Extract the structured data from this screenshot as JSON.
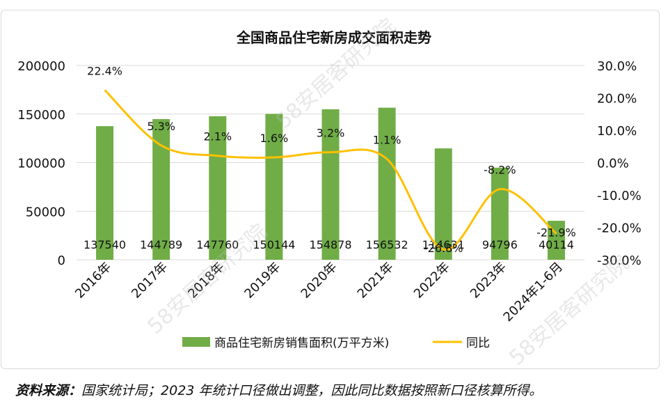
{
  "chart_data": {
    "type": "bar",
    "title": "全国商品住宅新房成交面积走势",
    "categories": [
      "2016年",
      "2017年",
      "2018年",
      "2019年",
      "2020年",
      "2021年",
      "2022年",
      "2023年",
      "2024年1-6月"
    ],
    "series": [
      {
        "name": "商品住宅新房销售面积(万平方米)",
        "type": "bar",
        "axis": "left",
        "color": "#70ad47",
        "values": [
          137540,
          144789,
          147760,
          150144,
          154878,
          156532,
          114631,
          94796,
          40114
        ]
      },
      {
        "name": "同比",
        "type": "line",
        "axis": "right",
        "color": "#ffc000",
        "values": [
          22.4,
          5.3,
          2.1,
          1.6,
          3.2,
          1.1,
          -26.8,
          -8.2,
          -21.9
        ],
        "labels": [
          "22.4%",
          "5.3%",
          "2.1%",
          "1.6%",
          "3.2%",
          "1.1%",
          "-26.8%",
          "-8.2%",
          "-21.9%"
        ]
      }
    ],
    "y_left": {
      "min": 0,
      "max": 200000,
      "ticks": [
        "0",
        "50000",
        "100000",
        "150000",
        "200000"
      ]
    },
    "y_right": {
      "min": -30,
      "max": 30,
      "ticks": [
        "-30.0%",
        "-20.0%",
        "-10.0%",
        "0.0%",
        "10.0%",
        "20.0%",
        "30.0%"
      ]
    },
    "legend_position": "bottom",
    "grid": true
  },
  "source_note": {
    "label": "资料来源：",
    "text": "国家统计局；2023 年统计口径做出调整，因此同比数据按照新口径核算所得。"
  },
  "watermark": "58安居客研究院"
}
